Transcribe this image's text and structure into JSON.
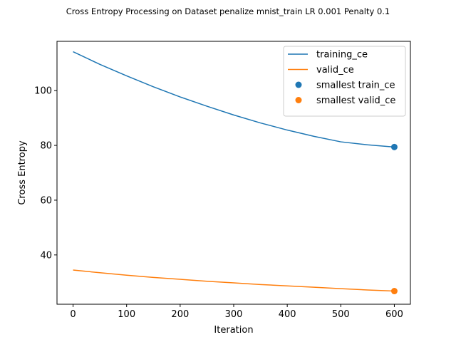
{
  "chart_data": {
    "type": "line",
    "title": "Cross Entropy Processing on Dataset penalize mnist_train LR 0.001 Penalty 0.1",
    "xlabel": "Iteration",
    "ylabel": "Cross Entropy",
    "xlim": [
      -30,
      630
    ],
    "ylim": [
      22,
      118
    ],
    "xticks": [
      0,
      100,
      200,
      300,
      400,
      500,
      600
    ],
    "yticks": [
      40,
      60,
      80,
      100
    ],
    "grid": false,
    "legend_position": "top-right",
    "x": [
      0,
      50,
      100,
      150,
      200,
      250,
      300,
      350,
      400,
      450,
      500,
      550,
      600
    ],
    "series": [
      {
        "name": "training_ce",
        "color": "#1f77b4",
        "values": [
          114.2,
          109.6,
          105.4,
          101.4,
          97.7,
          94.3,
          91.1,
          88.2,
          85.6,
          83.3,
          81.3,
          80.2,
          79.4
        ]
      },
      {
        "name": "valid_ce",
        "color": "#ff7f0e",
        "values": [
          34.5,
          33.5,
          32.6,
          31.8,
          31.1,
          30.4,
          29.8,
          29.2,
          28.7,
          28.2,
          27.7,
          27.2,
          26.8
        ]
      }
    ],
    "markers": [
      {
        "name": "smallest train_ce",
        "color": "#1f77b4",
        "x": 600,
        "y": 79.4
      },
      {
        "name": "smallest valid_ce",
        "color": "#ff7f0e",
        "x": 600,
        "y": 26.8
      }
    ]
  }
}
